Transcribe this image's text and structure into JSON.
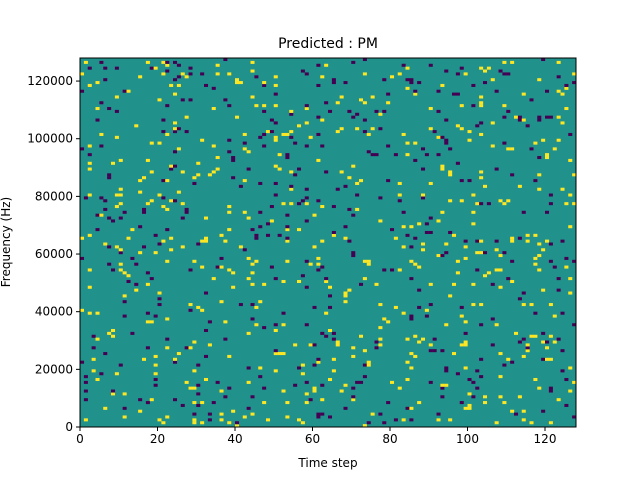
{
  "chart_data": {
    "type": "heatmap",
    "title": "Predicted : PM",
    "xlabel": "Time step",
    "ylabel": "Frequency (Hz)",
    "xlim": [
      0,
      128
    ],
    "ylim": [
      0,
      128000
    ],
    "x_ticks": [
      0,
      20,
      40,
      60,
      80,
      100,
      120
    ],
    "y_ticks": [
      0,
      20000,
      40000,
      60000,
      80000,
      100000,
      120000
    ],
    "y_tick_labels": [
      "0",
      "20000",
      "40000",
      "60000",
      "80000",
      "100000",
      "120000"
    ],
    "grid": false,
    "n_time_steps": 128,
    "n_frequency_bins": 128,
    "values_legend": {
      "background": 0,
      "bright": 1,
      "dark": -1
    },
    "colors": {
      "background": "#21918c",
      "bright": "#fde725",
      "dark": "#440154"
    },
    "random_seed": 20240607,
    "bright_density": 0.032,
    "dark_density": 0.026
  }
}
